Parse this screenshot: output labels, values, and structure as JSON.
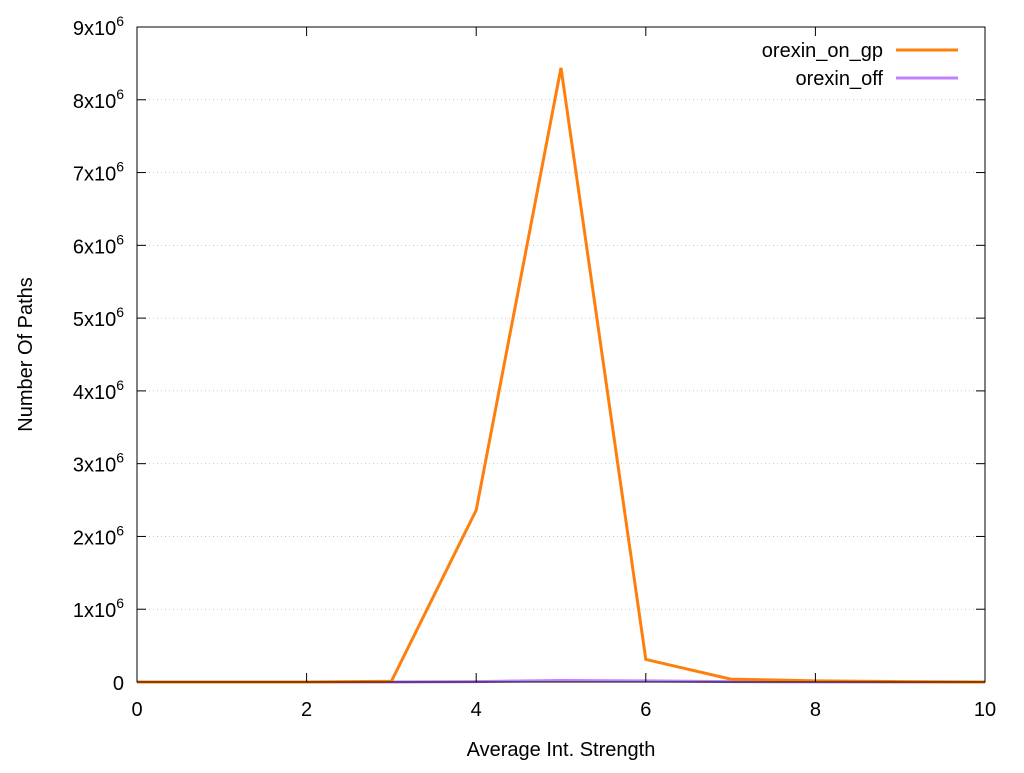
{
  "chart_data": {
    "type": "line",
    "title": "",
    "xlabel": "Average Int. Strength",
    "ylabel": "Number Of Paths",
    "xlim": [
      0,
      10
    ],
    "ylim": [
      0,
      9000000
    ],
    "x_ticks": [
      0,
      2,
      4,
      6,
      8,
      10
    ],
    "x_tick_labels": [
      "0",
      "2",
      "4",
      "6",
      "8",
      "10"
    ],
    "y_ticks": [
      0,
      1000000,
      2000000,
      3000000,
      4000000,
      5000000,
      6000000,
      7000000,
      8000000,
      9000000
    ],
    "y_tick_labels": [
      {
        "base": "0",
        "exp": ""
      },
      {
        "base": "1x10",
        "exp": "6"
      },
      {
        "base": "2x10",
        "exp": "6"
      },
      {
        "base": "3x10",
        "exp": "6"
      },
      {
        "base": "4x10",
        "exp": "6"
      },
      {
        "base": "5x10",
        "exp": "6"
      },
      {
        "base": "6x10",
        "exp": "6"
      },
      {
        "base": "7x10",
        "exp": "6"
      },
      {
        "base": "8x10",
        "exp": "6"
      },
      {
        "base": "9x10",
        "exp": "6"
      }
    ],
    "grid": "dotted",
    "legend_position": "top-right",
    "series": [
      {
        "name": "orexin_on_gp",
        "color": "#ff7f0e",
        "x": [
          0,
          1,
          2,
          3,
          4,
          5,
          6,
          7,
          8,
          9,
          10
        ],
        "y": [
          0,
          0,
          0,
          10000,
          2360000,
          8440000,
          310000,
          40000,
          15000,
          5000,
          0
        ]
      },
      {
        "name": "orexin_off",
        "color": "#c080ff",
        "x": [
          0,
          1,
          2,
          3,
          4,
          5,
          6,
          7,
          8,
          9,
          10
        ],
        "y": [
          0,
          0,
          0,
          0,
          5000,
          20000,
          15000,
          5000,
          2000,
          0,
          0
        ]
      }
    ]
  }
}
